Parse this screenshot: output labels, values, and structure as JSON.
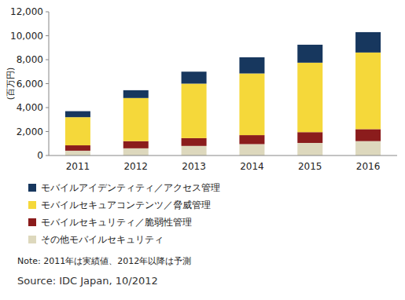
{
  "chart_data": {
    "type": "bar",
    "stacked": true,
    "grid": false,
    "legend": "bottom",
    "y_label": "(百万円)",
    "categories": [
      "2011",
      "2012",
      "2013",
      "2014",
      "2015",
      "2016"
    ],
    "series": [
      {
        "name": "モバイルアイデンティティ／アクセス管理",
        "color": "#17375e",
        "values": [
          500,
          650,
          1000,
          1350,
          1500,
          1700
        ]
      },
      {
        "name": "モバイルセキュアコンテンツ／脅威管理",
        "color": "#f5d83a",
        "values": [
          2350,
          3600,
          4550,
          5150,
          5800,
          6400
        ]
      },
      {
        "name": "モバイルセキュリティ／脆弱性管理",
        "color": "#8b1c1c",
        "values": [
          450,
          600,
          650,
          750,
          900,
          1000
        ]
      },
      {
        "name": "その他モバイルセキュリティ",
        "color": "#ddd8bd",
        "values": [
          400,
          600,
          800,
          950,
          1050,
          1200
        ]
      }
    ],
    "ylim": [
      0,
      12000
    ],
    "yticks": [
      0,
      {
        "value": 2000,
        "label": "2,000"
      },
      {
        "value": 4000,
        "label": "4,000"
      },
      {
        "value": 6000,
        "label": "6,000"
      },
      {
        "value": 8000,
        "label": "8,000"
      },
      {
        "value": 10000,
        "label": "10,000"
      },
      {
        "value": 12000,
        "label": "12,000"
      }
    ],
    "annotations": [
      "Note: 2011年は実績値、2012年以降は予測",
      "Source: IDC Japan, 10/2012"
    ]
  }
}
